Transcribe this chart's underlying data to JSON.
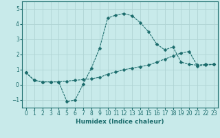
{
  "xlabel": "Humidex (Indice chaleur)",
  "background_color": "#c8eaea",
  "grid_color": "#b0d4d4",
  "line_color": "#1a6b6b",
  "x_values": [
    0,
    1,
    2,
    3,
    4,
    5,
    6,
    7,
    8,
    9,
    10,
    11,
    12,
    13,
    14,
    15,
    16,
    17,
    18,
    19,
    20,
    21,
    22,
    23
  ],
  "line1_y": [
    0.8,
    0.3,
    0.2,
    0.2,
    0.2,
    -1.1,
    -1.0,
    0.05,
    1.1,
    2.4,
    4.4,
    4.6,
    4.7,
    4.55,
    4.1,
    3.5,
    2.7,
    2.3,
    2.5,
    1.5,
    1.35,
    1.3,
    1.35,
    1.35
  ],
  "line2_y": [
    0.8,
    0.3,
    0.2,
    0.2,
    0.2,
    0.25,
    0.3,
    0.35,
    0.4,
    0.5,
    0.7,
    0.85,
    1.0,
    1.1,
    1.2,
    1.3,
    1.5,
    1.7,
    1.9,
    2.1,
    2.2,
    1.25,
    1.3,
    1.35
  ],
  "ylim": [
    -1.5,
    5.5
  ],
  "xlim": [
    -0.5,
    23.5
  ],
  "yticks": [
    -1,
    0,
    1,
    2,
    3,
    4,
    5
  ],
  "xticks": [
    0,
    1,
    2,
    3,
    4,
    5,
    6,
    7,
    8,
    9,
    10,
    11,
    12,
    13,
    14,
    15,
    16,
    17,
    18,
    19,
    20,
    21,
    22,
    23
  ],
  "tick_fontsize": 5.5,
  "xlabel_fontsize": 6.5,
  "marker": "D",
  "markersize": 2.5,
  "linewidth": 0.8
}
